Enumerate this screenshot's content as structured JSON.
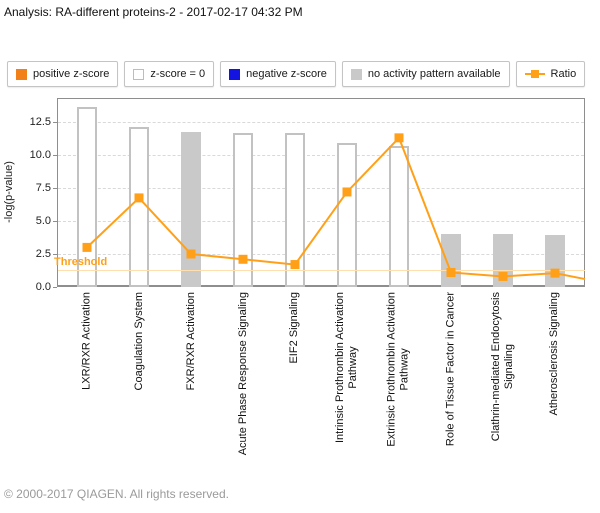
{
  "header": {
    "title": "Analysis: RA-different proteins-2 - 2017-02-17 04:32 PM"
  },
  "legend": {
    "items": [
      {
        "label": "positive z-score",
        "swatch": "orange-filled-square"
      },
      {
        "label": "z-score = 0",
        "swatch": "white-square"
      },
      {
        "label": "negative z-score",
        "swatch": "blue-filled-square"
      },
      {
        "label": "no activity pattern available",
        "swatch": "gray-filled-square"
      },
      {
        "label": "Ratio",
        "swatch": "orange-line-with-marker"
      }
    ]
  },
  "colors": {
    "positive_z_score": "#F28018",
    "negative_z_score": "#1414E0",
    "no_activity_gray": "#C9C9C9",
    "ratio_orange": "#FFA018",
    "threshold_line": "#FFDFAE"
  },
  "chart_data": {
    "type": "bar",
    "subtype": "combo bar + line (pathway analysis)",
    "title": "",
    "xlabel": "",
    "ylabel": "-log(p-value)",
    "ylim": [
      0,
      14.3
    ],
    "yticks": [
      0.0,
      2.5,
      5.0,
      7.5,
      10.0,
      12.5
    ],
    "grid": "horizontal dashed gridlines at each y tick",
    "legend_position": "top row of boxed items",
    "threshold": {
      "label": "Threshold",
      "value": 1.3
    },
    "categories": [
      "LXR/RXR Activation",
      "Coagulation System",
      "FXR/RXR Activation",
      "Acute Phase Response Signaling",
      "EIF2 Signaling",
      "Intrinsic Prothrombin Activation\nPathway",
      "Extrinsic Prothrombin Activation\nPathway",
      "Role of Tissue Factor in Cancer",
      "Clathrin-mediated Endocytosis\nSignaling",
      "Atherosclerosis Signaling"
    ],
    "series": [
      {
        "name": "-log(p-value)",
        "type": "bar",
        "values": [
          13.6,
          12.1,
          11.75,
          11.7,
          11.65,
          10.9,
          10.7,
          4.0,
          4.0,
          3.95
        ],
        "bar_styles": [
          "z-score = 0",
          "z-score = 0",
          "no activity pattern available",
          "z-score = 0",
          "z-score = 0",
          "z-score = 0",
          "z-score = 0",
          "no activity pattern available",
          "no activity pattern available",
          "no activity pattern available"
        ]
      },
      {
        "name": "Ratio",
        "type": "line",
        "values": [
          3.0,
          6.75,
          2.5,
          2.1,
          1.7,
          7.2,
          11.3,
          1.1,
          0.8,
          1.05
        ],
        "line_tail_value_at_right_edge": 0.6
      }
    ]
  },
  "footer": {
    "copyright": "© 2000-2017 QIAGEN. All rights reserved."
  }
}
